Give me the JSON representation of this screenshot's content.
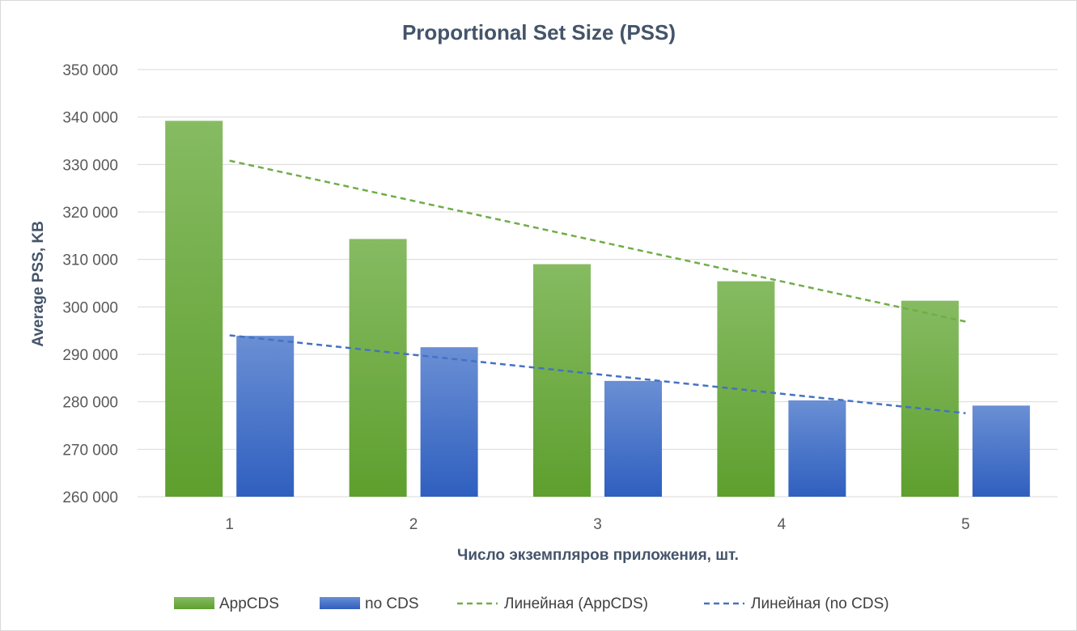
{
  "chart_data": {
    "type": "bar",
    "title": "Proportional Set Size (PSS)",
    "xlabel": "Число экземпляров приложения, шт.",
    "ylabel": "Average PSS, KB",
    "categories": [
      "1",
      "2",
      "3",
      "4",
      "5"
    ],
    "ylim": [
      260000,
      350000
    ],
    "yticks": [
      260000,
      270000,
      280000,
      290000,
      300000,
      310000,
      320000,
      330000,
      340000,
      350000
    ],
    "ytick_labels": [
      "260 000",
      "270 000",
      "280 000",
      "290 000",
      "300 000",
      "310 000",
      "320 000",
      "330 000",
      "340 000",
      "350 000"
    ],
    "grid": true,
    "legend_position": "bottom",
    "series": [
      {
        "name": "AppCDS",
        "kind": "bar",
        "color": "#70ad47",
        "values": [
          339200,
          314300,
          309000,
          305400,
          301300
        ]
      },
      {
        "name": "no CDS",
        "kind": "bar",
        "color": "#4472c4",
        "values": [
          293900,
          291500,
          284400,
          280300,
          279200
        ]
      }
    ],
    "trendlines": [
      {
        "name": "Линейная (AppCDS)",
        "kind": "linear-trend",
        "color": "#70ad47",
        "start": 330800,
        "end": 296900
      },
      {
        "name": "Линейная (no CDS)",
        "kind": "linear-trend",
        "color": "#4472c4",
        "start": 294000,
        "end": 277600
      }
    ]
  }
}
